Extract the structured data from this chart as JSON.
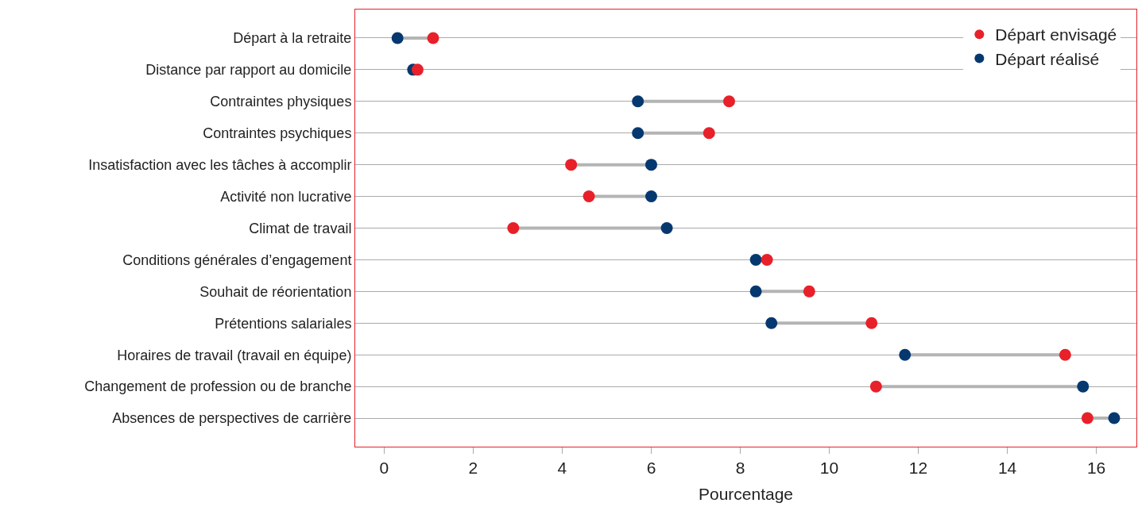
{
  "chart_data": {
    "type": "scatter",
    "orientation": "horizontal",
    "xlabel": "Pourcentage",
    "categories": [
      "Départ à la retraite",
      "Distance par rapport au domicile",
      "Contraintes physiques",
      "Contraintes psychiques",
      "Insatisfaction avec les tâches à accomplir",
      "Activité non lucrative",
      "Climat de travail",
      "Conditions générales d’engagement",
      "Souhait de réorientation",
      "Prétentions salariales",
      "Horaires de travail (travail en équipe)",
      "Changement de profession ou de branche",
      "Absences de perspectives de carrière"
    ],
    "series": [
      {
        "name": "Départ envisagé",
        "color": "#e8202a",
        "values": [
          1.1,
          0.75,
          7.75,
          7.3,
          4.2,
          4.6,
          2.9,
          8.6,
          9.55,
          10.95,
          15.3,
          11.05,
          15.8
        ]
      },
      {
        "name": "Départ réalisé",
        "color": "#063870",
        "values": [
          0.3,
          0.65,
          5.7,
          5.7,
          6.0,
          6.0,
          6.35,
          8.35,
          8.35,
          8.7,
          11.7,
          15.7,
          16.4
        ]
      }
    ],
    "xlim": [
      -0.65,
      16.9
    ],
    "xticks": [
      0,
      2,
      4,
      6,
      8,
      10,
      12,
      14,
      16
    ],
    "grid": "y",
    "legend": "top right",
    "marker": "circle"
  }
}
